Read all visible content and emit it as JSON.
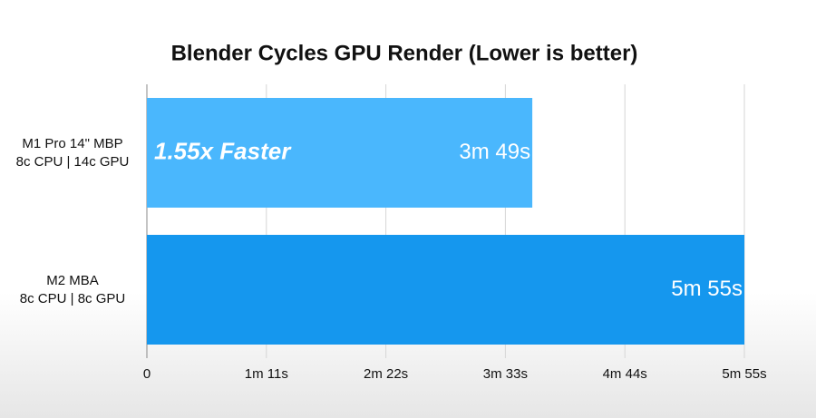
{
  "chart_data": {
    "type": "bar",
    "orientation": "horizontal",
    "title": "Blender Cycles GPU Render (Lower is better)",
    "categories": [
      "M1 Pro 14\" MBP\n8c CPU | 14c GPU",
      "M2 MBA\n8c CPU | 8c GPU"
    ],
    "values": [
      229,
      355
    ],
    "value_labels": [
      "3m 49s",
      "5m 55s"
    ],
    "colors": [
      "#4ab7fd",
      "#1597ee"
    ],
    "annotation": "1.55x Faster",
    "xlim": [
      0,
      355
    ],
    "xticks": [
      0,
      {
        "value": 71,
        "label": "1m 11s"
      },
      {
        "value": 142,
        "label": "2m 22s"
      },
      {
        "value": 213,
        "label": "3m 33s"
      },
      {
        "value": 284,
        "label": "4m 44s"
      },
      {
        "value": 355,
        "label": "5m 55s"
      }
    ],
    "grid": true
  }
}
